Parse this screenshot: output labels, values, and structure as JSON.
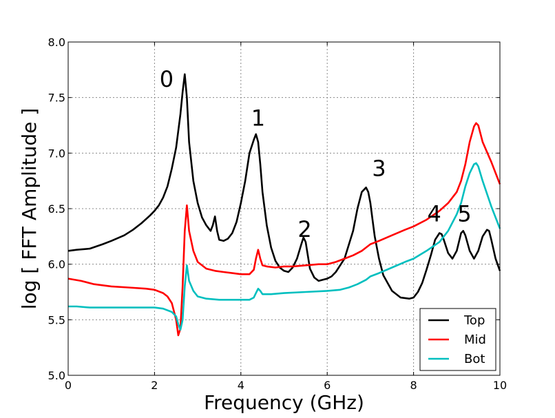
{
  "chart_data": {
    "type": "line",
    "title": "",
    "xlabel": "Frequency (GHz)",
    "ylabel": "log [ FFT Amplitude ]",
    "xlim": [
      0,
      10
    ],
    "ylim": [
      5.0,
      8.0
    ],
    "x_ticks": [
      "0",
      "2",
      "4",
      "6",
      "8",
      "10"
    ],
    "y_ticks": [
      "5.0",
      "5.5",
      "6.0",
      "6.5",
      "7.0",
      "7.5",
      "8.0"
    ],
    "grid": true,
    "legend_position": "bottom-right",
    "peak_annotations": [
      {
        "text": "0",
        "x": 2.28,
        "y": 7.67
      },
      {
        "text": "1",
        "x": 4.4,
        "y": 7.32
      },
      {
        "text": "2",
        "x": 5.48,
        "y": 6.32
      },
      {
        "text": "3",
        "x": 7.2,
        "y": 6.87
      },
      {
        "text": "4",
        "x": 8.48,
        "y": 6.46
      },
      {
        "text": "5",
        "x": 9.18,
        "y": 6.46
      }
    ],
    "series": [
      {
        "name": "Top",
        "color": "#000000",
        "x": [
          0,
          0.2,
          0.5,
          0.8,
          1.0,
          1.3,
          1.5,
          1.7,
          1.9,
          2.0,
          2.1,
          2.2,
          2.3,
          2.4,
          2.5,
          2.6,
          2.65,
          2.7,
          2.75,
          2.8,
          2.9,
          3.0,
          3.1,
          3.2,
          3.3,
          3.35,
          3.4,
          3.45,
          3.5,
          3.6,
          3.7,
          3.8,
          3.9,
          4.0,
          4.1,
          4.2,
          4.3,
          4.35,
          4.4,
          4.45,
          4.5,
          4.6,
          4.7,
          4.8,
          4.9,
          5.0,
          5.1,
          5.2,
          5.3,
          5.4,
          5.45,
          5.5,
          5.55,
          5.6,
          5.7,
          5.8,
          5.9,
          6.0,
          6.1,
          6.2,
          6.4,
          6.6,
          6.7,
          6.8,
          6.9,
          6.95,
          7.0,
          7.05,
          7.1,
          7.2,
          7.3,
          7.5,
          7.7,
          7.9,
          8.0,
          8.1,
          8.2,
          8.3,
          8.4,
          8.5,
          8.6,
          8.65,
          8.7,
          8.8,
          8.9,
          9.0,
          9.1,
          9.15,
          9.2,
          9.3,
          9.4,
          9.5,
          9.6,
          9.7,
          9.75,
          9.8,
          9.9,
          10.0
        ],
        "values": [
          6.12,
          6.13,
          6.14,
          6.18,
          6.21,
          6.26,
          6.31,
          6.37,
          6.44,
          6.48,
          6.53,
          6.6,
          6.7,
          6.86,
          7.05,
          7.35,
          7.55,
          7.71,
          7.5,
          7.1,
          6.75,
          6.55,
          6.42,
          6.35,
          6.3,
          6.35,
          6.43,
          6.3,
          6.22,
          6.21,
          6.23,
          6.28,
          6.38,
          6.55,
          6.75,
          7.0,
          7.12,
          7.17,
          7.1,
          6.9,
          6.65,
          6.35,
          6.15,
          6.03,
          5.97,
          5.94,
          5.93,
          5.97,
          6.05,
          6.18,
          6.24,
          6.2,
          6.08,
          5.96,
          5.88,
          5.85,
          5.86,
          5.87,
          5.89,
          5.93,
          6.05,
          6.3,
          6.5,
          6.65,
          6.69,
          6.65,
          6.55,
          6.4,
          6.25,
          6.05,
          5.9,
          5.76,
          5.7,
          5.69,
          5.7,
          5.75,
          5.83,
          5.95,
          6.08,
          6.22,
          6.28,
          6.27,
          6.22,
          6.1,
          6.05,
          6.12,
          6.28,
          6.3,
          6.26,
          6.12,
          6.05,
          6.12,
          6.25,
          6.31,
          6.3,
          6.22,
          6.05,
          5.94
        ]
      },
      {
        "name": "Mid",
        "color": "#ff0000",
        "x": [
          0,
          0.3,
          0.6,
          1.0,
          1.4,
          1.8,
          2.0,
          2.2,
          2.3,
          2.4,
          2.5,
          2.55,
          2.6,
          2.65,
          2.7,
          2.75,
          2.8,
          2.9,
          3.0,
          3.2,
          3.4,
          3.6,
          3.8,
          4.0,
          4.2,
          4.3,
          4.35,
          4.4,
          4.45,
          4.5,
          4.6,
          4.8,
          5.0,
          5.2,
          5.5,
          5.8,
          6.0,
          6.2,
          6.4,
          6.6,
          6.8,
          6.9,
          7.0,
          7.2,
          7.5,
          7.8,
          8.0,
          8.3,
          8.6,
          8.8,
          9.0,
          9.1,
          9.2,
          9.3,
          9.4,
          9.45,
          9.5,
          9.6,
          9.8,
          10.0
        ],
        "values": [
          5.87,
          5.85,
          5.82,
          5.8,
          5.79,
          5.78,
          5.77,
          5.74,
          5.71,
          5.65,
          5.5,
          5.36,
          5.42,
          5.8,
          6.3,
          6.53,
          6.3,
          6.12,
          6.02,
          5.96,
          5.94,
          5.93,
          5.92,
          5.91,
          5.91,
          5.95,
          6.05,
          6.13,
          6.05,
          5.99,
          5.98,
          5.97,
          5.98,
          5.98,
          5.99,
          6.0,
          6.0,
          6.02,
          6.05,
          6.08,
          6.12,
          6.15,
          6.18,
          6.21,
          6.26,
          6.31,
          6.34,
          6.4,
          6.48,
          6.55,
          6.65,
          6.75,
          6.9,
          7.1,
          7.24,
          7.27,
          7.25,
          7.1,
          6.92,
          6.72
        ]
      },
      {
        "name": "Bot",
        "color": "#00bfbf",
        "x": [
          0,
          0.2,
          0.5,
          1.0,
          1.5,
          2.0,
          2.2,
          2.4,
          2.5,
          2.55,
          2.6,
          2.65,
          2.7,
          2.75,
          2.8,
          2.9,
          3.0,
          3.2,
          3.5,
          3.8,
          4.0,
          4.2,
          4.3,
          4.35,
          4.4,
          4.45,
          4.5,
          4.7,
          5.0,
          5.5,
          6.0,
          6.3,
          6.5,
          6.7,
          6.9,
          7.0,
          7.2,
          7.5,
          7.8,
          8.0,
          8.3,
          8.6,
          8.8,
          9.0,
          9.1,
          9.2,
          9.3,
          9.4,
          9.45,
          9.5,
          9.6,
          9.8,
          10.0
        ],
        "values": [
          5.62,
          5.62,
          5.61,
          5.61,
          5.61,
          5.61,
          5.6,
          5.57,
          5.53,
          5.46,
          5.41,
          5.5,
          5.8,
          5.99,
          5.85,
          5.76,
          5.71,
          5.69,
          5.68,
          5.68,
          5.68,
          5.68,
          5.7,
          5.74,
          5.78,
          5.76,
          5.73,
          5.73,
          5.74,
          5.75,
          5.76,
          5.77,
          5.79,
          5.82,
          5.86,
          5.89,
          5.92,
          5.97,
          6.02,
          6.05,
          6.12,
          6.2,
          6.3,
          6.45,
          6.55,
          6.7,
          6.82,
          6.9,
          6.91,
          6.88,
          6.75,
          6.52,
          6.32
        ]
      }
    ]
  }
}
